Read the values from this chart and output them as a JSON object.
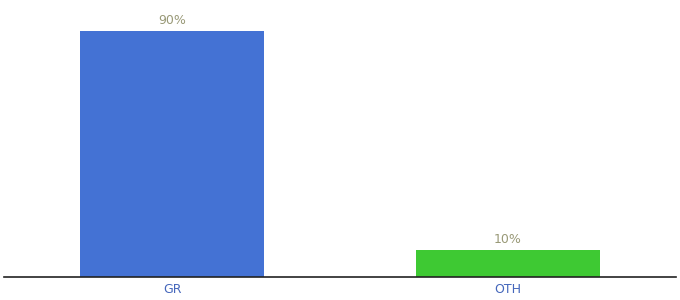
{
  "categories": [
    "GR",
    "OTH"
  ],
  "values": [
    90,
    10
  ],
  "bar_colors": [
    "#4472d4",
    "#3ec933"
  ],
  "labels": [
    "90%",
    "10%"
  ],
  "background_color": "#ffffff",
  "ylim": [
    0,
    100
  ],
  "bar_width": 0.55,
  "label_fontsize": 9,
  "tick_fontsize": 9,
  "label_color": "#999977",
  "tick_color": "#4466bb",
  "bottom_spine_color": "#222222"
}
